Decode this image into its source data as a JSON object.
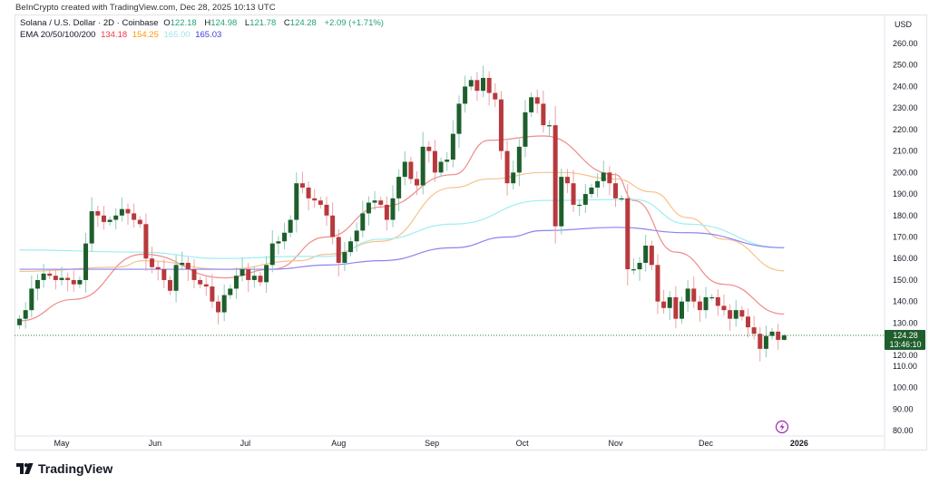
{
  "credit": "BeInCrypto created with TradingView.com, Dec 28, 2025 10:13 UTC",
  "legend": {
    "symbol": "Solana / U.S. Dollar · 2D · Coinbase",
    "o_label": "O",
    "o": "122.18",
    "h_label": "H",
    "h": "124.98",
    "l_label": "L",
    "l": "121.78",
    "c_label": "C",
    "c": "124.28",
    "change": "+2.09 (+1.71%)",
    "ema_label": "EMA 20/50/100/200",
    "ema20": "134.18",
    "ema50": "154.25",
    "ema100": "165.00",
    "ema200": "165.03"
  },
  "price_badge": {
    "price": "124.28",
    "countdown": "13:46:10"
  },
  "brand": "TradingView",
  "colors": {
    "up": "#1e5e2c",
    "down": "#b8393d",
    "up_wick": "#8fcab5",
    "down_wick": "#eba3a5",
    "ema20": "#ef8a8a",
    "ema50": "#f8c08c",
    "ema100": "#9eeef0",
    "ema200": "#8a84f0",
    "badge": "#1e5e2c",
    "lightning": "#9c27b0"
  },
  "chart_data": {
    "type": "candlestick",
    "interval": "2D",
    "currency": "USD",
    "ylim": [
      80,
      260
    ],
    "y_ticks": [
      "260.00",
      "250.00",
      "240.00",
      "230.00",
      "220.00",
      "210.00",
      "200.00",
      "190.00",
      "180.00",
      "170.00",
      "160.00",
      "150.00",
      "140.00",
      "130.00",
      "120.00",
      "110.00",
      "100.00",
      "90.00",
      "80.00"
    ],
    "x_ticks": [
      {
        "label": "May",
        "date": "2025-05-01"
      },
      {
        "label": "Jun",
        "date": "2025-06-01"
      },
      {
        "label": "Jul",
        "date": "2025-07-01"
      },
      {
        "label": "Aug",
        "date": "2025-08-01"
      },
      {
        "label": "Sep",
        "date": "2025-09-01"
      },
      {
        "label": "Oct",
        "date": "2025-10-01"
      },
      {
        "label": "Nov",
        "date": "2025-11-01"
      },
      {
        "label": "Dec",
        "date": "2025-12-01"
      },
      {
        "label": "2026",
        "date": "2026-01-01",
        "bold": true
      }
    ],
    "closes": [
      [
        "2025-04-17",
        132
      ],
      [
        "2025-04-19",
        136
      ],
      [
        "2025-04-21",
        146
      ],
      [
        "2025-04-23",
        150
      ],
      [
        "2025-04-25",
        153
      ],
      [
        "2025-04-27",
        152
      ],
      [
        "2025-04-29",
        150
      ],
      [
        "2025-05-01",
        151
      ],
      [
        "2025-05-03",
        150
      ],
      [
        "2025-05-05",
        148
      ],
      [
        "2025-05-07",
        150
      ],
      [
        "2025-05-09",
        167
      ],
      [
        "2025-05-11",
        182
      ],
      [
        "2025-05-13",
        180
      ],
      [
        "2025-05-15",
        177
      ],
      [
        "2025-05-17",
        178
      ],
      [
        "2025-05-19",
        180
      ],
      [
        "2025-05-21",
        183
      ],
      [
        "2025-05-23",
        181
      ],
      [
        "2025-05-25",
        178
      ],
      [
        "2025-05-27",
        176
      ],
      [
        "2025-05-29",
        160
      ],
      [
        "2025-05-31",
        156
      ],
      [
        "2025-06-02",
        155
      ],
      [
        "2025-06-04",
        150
      ],
      [
        "2025-06-06",
        145
      ],
      [
        "2025-06-08",
        157
      ],
      [
        "2025-06-10",
        158
      ],
      [
        "2025-06-12",
        155
      ],
      [
        "2025-06-14",
        150
      ],
      [
        "2025-06-16",
        148
      ],
      [
        "2025-06-18",
        147
      ],
      [
        "2025-06-20",
        140
      ],
      [
        "2025-06-22",
        135
      ],
      [
        "2025-06-24",
        143
      ],
      [
        "2025-06-26",
        146
      ],
      [
        "2025-06-28",
        152
      ],
      [
        "2025-06-30",
        155
      ],
      [
        "2025-07-02",
        150
      ],
      [
        "2025-07-04",
        152
      ],
      [
        "2025-07-06",
        149
      ],
      [
        "2025-07-08",
        157
      ],
      [
        "2025-07-10",
        167
      ],
      [
        "2025-07-12",
        168
      ],
      [
        "2025-07-14",
        172
      ],
      [
        "2025-07-16",
        178
      ],
      [
        "2025-07-18",
        195
      ],
      [
        "2025-07-20",
        193
      ],
      [
        "2025-07-22",
        188
      ],
      [
        "2025-07-24",
        187
      ],
      [
        "2025-07-26",
        185
      ],
      [
        "2025-07-28",
        180
      ],
      [
        "2025-07-30",
        170
      ],
      [
        "2025-08-01",
        158
      ],
      [
        "2025-08-03",
        163
      ],
      [
        "2025-08-05",
        168
      ],
      [
        "2025-08-07",
        173
      ],
      [
        "2025-08-09",
        181
      ],
      [
        "2025-08-11",
        186
      ],
      [
        "2025-08-13",
        187
      ],
      [
        "2025-08-15",
        185
      ],
      [
        "2025-08-17",
        178
      ],
      [
        "2025-08-19",
        188
      ],
      [
        "2025-08-21",
        198
      ],
      [
        "2025-08-23",
        205
      ],
      [
        "2025-08-25",
        197
      ],
      [
        "2025-08-27",
        194
      ],
      [
        "2025-08-29",
        212
      ],
      [
        "2025-08-31",
        210
      ],
      [
        "2025-09-02",
        200
      ],
      [
        "2025-09-04",
        205
      ],
      [
        "2025-09-06",
        206
      ],
      [
        "2025-09-08",
        218
      ],
      [
        "2025-09-10",
        232
      ],
      [
        "2025-09-12",
        240
      ],
      [
        "2025-09-14",
        243
      ],
      [
        "2025-09-16",
        238
      ],
      [
        "2025-09-18",
        244
      ],
      [
        "2025-09-20",
        237
      ],
      [
        "2025-09-22",
        234
      ],
      [
        "2025-09-24",
        210
      ],
      [
        "2025-09-26",
        195
      ],
      [
        "2025-09-28",
        200
      ],
      [
        "2025-09-30",
        212
      ],
      [
        "2025-10-02",
        228
      ],
      [
        "2025-10-04",
        235
      ],
      [
        "2025-10-06",
        232
      ],
      [
        "2025-10-08",
        222
      ],
      [
        "2025-10-10",
        222
      ],
      [
        "2025-10-12",
        175
      ],
      [
        "2025-10-14",
        198
      ],
      [
        "2025-10-16",
        195
      ],
      [
        "2025-10-18",
        185
      ],
      [
        "2025-10-20",
        185
      ],
      [
        "2025-10-22",
        190
      ],
      [
        "2025-10-24",
        193
      ],
      [
        "2025-10-26",
        196
      ],
      [
        "2025-10-28",
        200
      ],
      [
        "2025-10-30",
        195
      ],
      [
        "2025-11-01",
        188
      ],
      [
        "2025-11-03",
        188
      ],
      [
        "2025-11-05",
        155
      ],
      [
        "2025-11-07",
        155
      ],
      [
        "2025-11-09",
        158
      ],
      [
        "2025-11-11",
        166
      ],
      [
        "2025-11-13",
        157
      ],
      [
        "2025-11-15",
        140
      ],
      [
        "2025-11-17",
        137
      ],
      [
        "2025-11-19",
        142
      ],
      [
        "2025-11-21",
        132
      ],
      [
        "2025-11-23",
        140
      ],
      [
        "2025-11-25",
        146
      ],
      [
        "2025-11-27",
        140
      ],
      [
        "2025-11-29",
        136
      ],
      [
        "2025-12-01",
        142
      ],
      [
        "2025-12-03",
        142
      ],
      [
        "2025-12-05",
        138
      ],
      [
        "2025-12-07",
        136
      ],
      [
        "2025-12-09",
        132
      ],
      [
        "2025-12-11",
        136
      ],
      [
        "2025-12-13",
        133
      ],
      [
        "2025-12-15",
        128
      ],
      [
        "2025-12-17",
        125
      ],
      [
        "2025-12-19",
        118
      ],
      [
        "2025-12-21",
        124
      ],
      [
        "2025-12-23",
        126
      ],
      [
        "2025-12-25",
        122.18
      ],
      [
        "2025-12-27",
        124.28
      ]
    ],
    "last_candle": {
      "open": 122.18,
      "high": 124.98,
      "low": 121.78,
      "close": 124.28
    },
    "series": [
      {
        "name": "EMA 20",
        "color": "ema20",
        "points": [
          [
            "2025-04-17",
            131
          ],
          [
            "2025-05-05",
            141
          ],
          [
            "2025-05-28",
            162
          ],
          [
            "2025-06-24",
            151
          ],
          [
            "2025-07-10",
            155
          ],
          [
            "2025-07-28",
            170
          ],
          [
            "2025-08-15",
            184
          ],
          [
            "2025-09-08",
            199
          ],
          [
            "2025-09-20",
            215
          ],
          [
            "2025-10-08",
            217
          ],
          [
            "2025-11-01",
            199
          ],
          [
            "2025-11-07",
            187
          ],
          [
            "2025-11-21",
            163
          ],
          [
            "2025-12-07",
            148
          ],
          [
            "2025-12-27",
            134.18
          ]
        ]
      },
      {
        "name": "EMA 50",
        "color": "ema50",
        "points": [
          [
            "2025-04-17",
            154
          ],
          [
            "2025-05-20",
            156
          ],
          [
            "2025-05-28",
            159
          ],
          [
            "2025-06-24",
            155
          ],
          [
            "2025-07-19",
            159
          ],
          [
            "2025-07-28",
            162
          ],
          [
            "2025-08-15",
            168
          ],
          [
            "2025-09-08",
            193
          ],
          [
            "2025-09-20",
            197
          ],
          [
            "2025-10-08",
            200
          ],
          [
            "2025-10-14",
            200
          ],
          [
            "2025-11-01",
            197
          ],
          [
            "2025-11-13",
            191
          ],
          [
            "2025-11-25",
            179
          ],
          [
            "2025-12-07",
            169
          ],
          [
            "2025-12-27",
            154.25
          ]
        ]
      },
      {
        "name": "EMA 100",
        "color": "ema100",
        "points": [
          [
            "2025-04-17",
            164
          ],
          [
            "2025-05-26",
            163
          ],
          [
            "2025-06-24",
            160
          ],
          [
            "2025-07-19",
            161
          ],
          [
            "2025-07-28",
            161
          ],
          [
            "2025-08-15",
            169
          ],
          [
            "2025-09-08",
            176
          ],
          [
            "2025-10-08",
            187
          ],
          [
            "2025-11-07",
            187.5
          ],
          [
            "2025-11-25",
            176
          ],
          [
            "2025-12-27",
            165.0
          ]
        ]
      },
      {
        "name": "EMA 200",
        "color": "ema200",
        "points": [
          [
            "2025-04-17",
            155
          ],
          [
            "2025-05-26",
            155
          ],
          [
            "2025-07-10",
            155
          ],
          [
            "2025-07-28",
            157
          ],
          [
            "2025-08-15",
            159
          ],
          [
            "2025-09-08",
            165
          ],
          [
            "2025-09-26",
            170
          ],
          [
            "2025-10-08",
            173
          ],
          [
            "2025-11-01",
            174.5
          ],
          [
            "2025-11-25",
            172
          ],
          [
            "2025-12-27",
            165.03
          ]
        ]
      }
    ]
  }
}
